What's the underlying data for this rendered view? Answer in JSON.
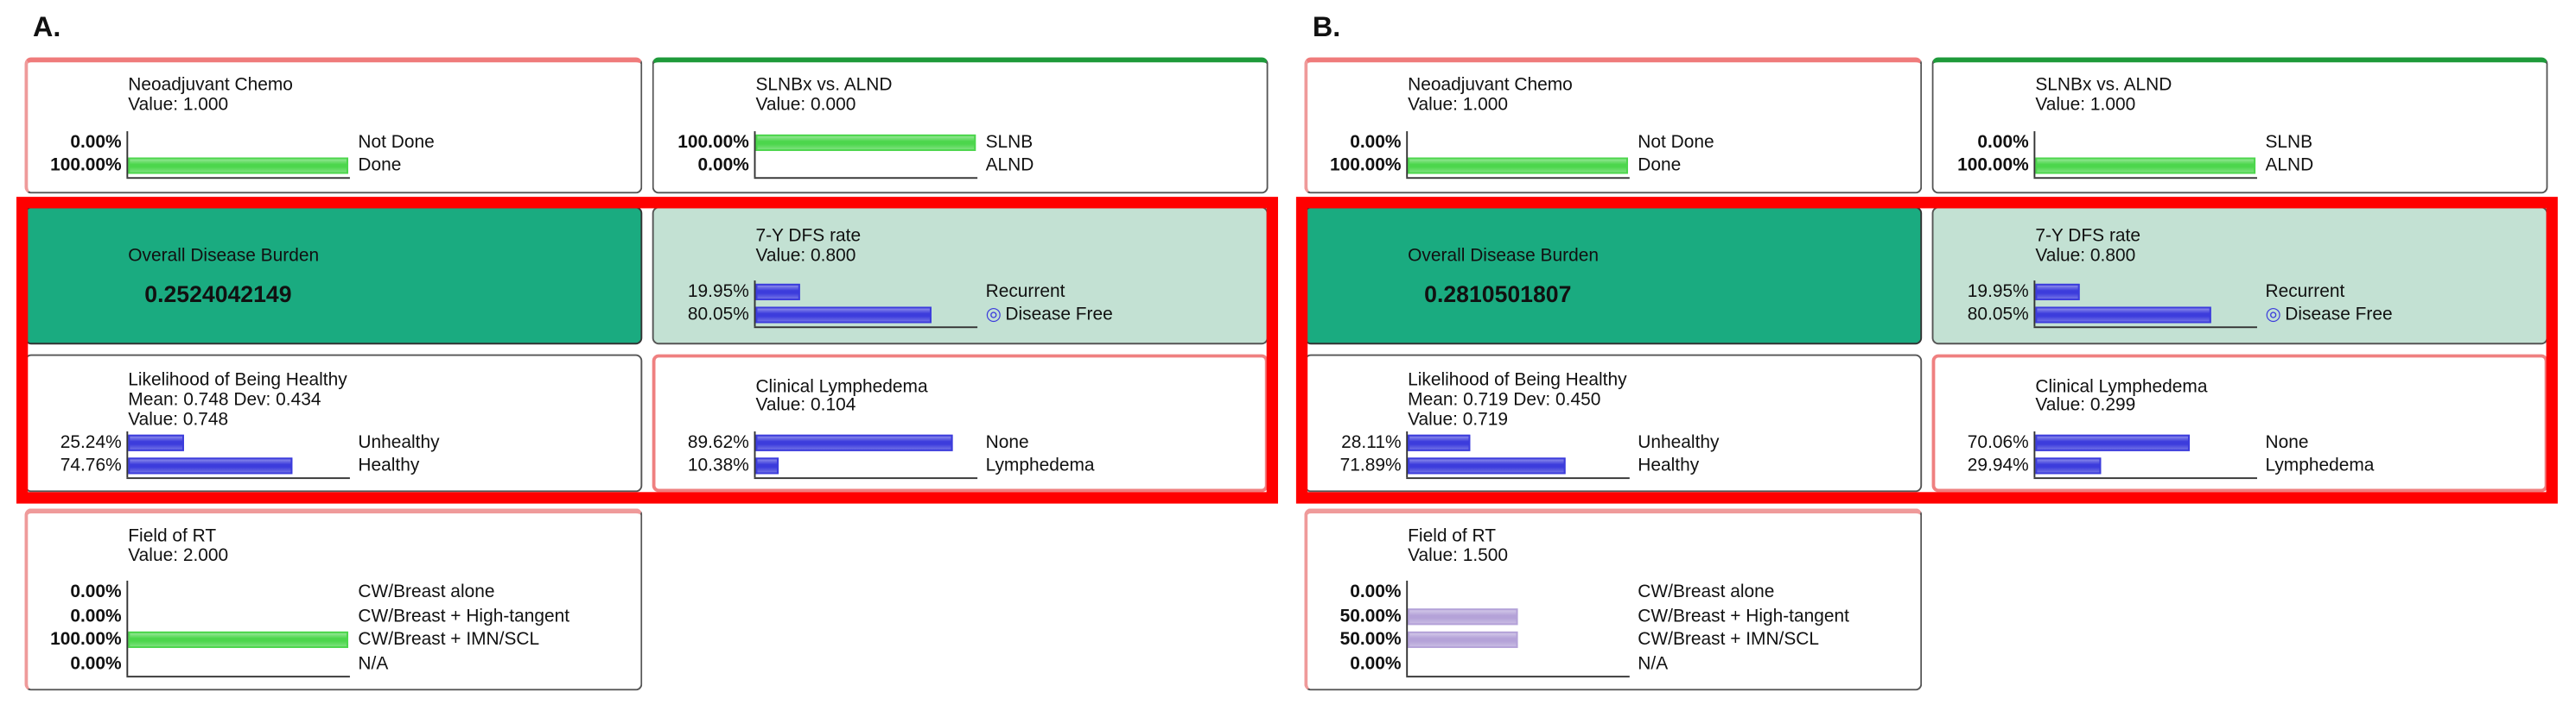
{
  "panels": [
    {
      "label": "A.",
      "nodes": [
        {
          "title": "Neoadjuvant Chemo",
          "lines": [
            "Value: 1.000"
          ],
          "bar_color": "#4cd64c",
          "states": [
            {
              "name": "Not Done",
              "value": 0,
              "label": "0.00%"
            },
            {
              "name": "Done",
              "value": 100,
              "label": "100.00%"
            }
          ]
        },
        {
          "title": "SLNBx vs. ALND",
          "lines": [
            "Value: 0.000"
          ],
          "bar_color": "#4cd64c",
          "states": [
            {
              "name": "SLNB",
              "value": 100,
              "label": "100.00%"
            },
            {
              "name": "ALND",
              "value": 0,
              "label": "0.00%"
            }
          ]
        },
        {
          "title": "Overall Disease Burden",
          "lines": [],
          "result": "0.2524042149",
          "states": []
        },
        {
          "title": "7-Y DFS rate",
          "lines": [
            "Value: 0.800"
          ],
          "bar_color": "#3c3cdc",
          "states": [
            {
              "name": "Recurrent",
              "value": 19.95,
              "label": "19.95%"
            },
            {
              "name": "Disease Free",
              "value": 80.05,
              "label": "80.05%"
            }
          ]
        },
        {
          "title": "Likelihood of Being Healthy",
          "lines": [
            "Mean: 0.748 Dev: 0.434",
            "Value: 0.748"
          ],
          "bar_color": "#3c3cdc",
          "states": [
            {
              "name": "Unhealthy",
              "value": 25.24,
              "label": "25.24%"
            },
            {
              "name": "Healthy",
              "value": 74.76,
              "label": "74.76%"
            }
          ]
        },
        {
          "title": "Clinical Lymphedema",
          "lines": [
            "Value: 0.104"
          ],
          "bar_color": "#3c3cdc",
          "states": [
            {
              "name": "None",
              "value": 89.62,
              "label": "89.62%"
            },
            {
              "name": "Lymphedema",
              "value": 10.38,
              "label": "10.38%"
            }
          ]
        },
        {
          "title": "Field of RT",
          "lines": [
            "Value: 2.000"
          ],
          "bar_color": "#4cd64c",
          "states": [
            {
              "name": "CW/Breast alone",
              "value": 0,
              "label": "0.00%"
            },
            {
              "name": "CW/Breast + High-tangent",
              "value": 0,
              "label": "0.00%"
            },
            {
              "name": "CW/Breast + IMN/SCL",
              "value": 100,
              "label": "100.00%"
            },
            {
              "name": "N/A",
              "value": 0,
              "label": "0.00%"
            }
          ]
        }
      ]
    },
    {
      "label": "B.",
      "nodes": [
        {
          "title": "Neoadjuvant Chemo",
          "lines": [
            "Value: 1.000"
          ],
          "bar_color": "#4cd64c",
          "states": [
            {
              "name": "Not Done",
              "value": 0,
              "label": "0.00%"
            },
            {
              "name": "Done",
              "value": 100,
              "label": "100.00%"
            }
          ]
        },
        {
          "title": "SLNBx vs. ALND",
          "lines": [
            "Value: 1.000"
          ],
          "bar_color": "#4cd64c",
          "states": [
            {
              "name": "SLNB",
              "value": 0,
              "label": "0.00%"
            },
            {
              "name": "ALND",
              "value": 100,
              "label": "100.00%"
            }
          ]
        },
        {
          "title": "Overall Disease Burden",
          "lines": [],
          "result": "0.2810501807",
          "states": []
        },
        {
          "title": "7-Y DFS rate",
          "lines": [
            "Value: 0.800"
          ],
          "bar_color": "#3c3cdc",
          "states": [
            {
              "name": "Recurrent",
              "value": 19.95,
              "label": "19.95%"
            },
            {
              "name": "Disease Free",
              "value": 80.05,
              "label": "80.05%"
            }
          ]
        },
        {
          "title": "Likelihood of Being Healthy",
          "lines": [
            "Mean: 0.719 Dev: 0.450",
            "Value: 0.719"
          ],
          "bar_color": "#3c3cdc",
          "states": [
            {
              "name": "Unhealthy",
              "value": 28.11,
              "label": "28.11%"
            },
            {
              "name": "Healthy",
              "value": 71.89,
              "label": "71.89%"
            }
          ]
        },
        {
          "title": "Clinical Lymphedema",
          "lines": [
            "Value: 0.299"
          ],
          "bar_color": "#3c3cdc",
          "states": [
            {
              "name": "None",
              "value": 70.06,
              "label": "70.06%"
            },
            {
              "name": "Lymphedema",
              "value": 29.94,
              "label": "29.94%"
            }
          ]
        },
        {
          "title": "Field of RT",
          "lines": [
            "Value: 1.500"
          ],
          "bar_color": "#b4a2d8",
          "states": [
            {
              "name": "CW/Breast alone",
              "value": 0,
              "label": "0.00%"
            },
            {
              "name": "CW/Breast + High-tangent",
              "value": 50,
              "label": "50.00%"
            },
            {
              "name": "CW/Breast + IMN/SCL",
              "value": 50,
              "label": "50.00%"
            },
            {
              "name": "N/A",
              "value": 0,
              "label": "0.00%"
            }
          ]
        }
      ]
    }
  ]
}
